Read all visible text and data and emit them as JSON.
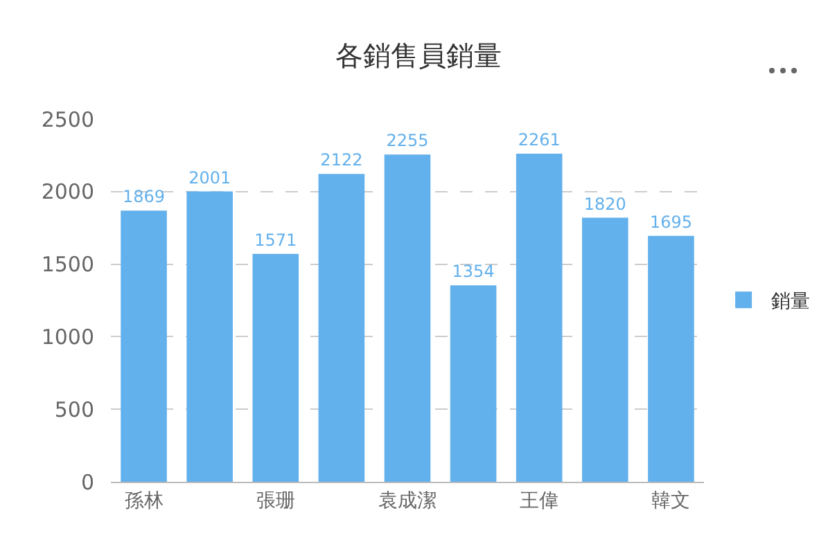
{
  "chart_data": {
    "type": "bar",
    "title": "各銷售員銷量",
    "categories": [
      "孫林",
      null,
      "張珊",
      null,
      "袁成潔",
      null,
      "王偉",
      null,
      "韓文"
    ],
    "series": [
      {
        "name": "銷量",
        "color": "#62b0ec",
        "values": [
          1869,
          2001,
          1571,
          2122,
          2255,
          1354,
          2261,
          1820,
          1695
        ]
      }
    ],
    "ylim": [
      0,
      2500
    ],
    "yticks": [
      0,
      500,
      1000,
      1500,
      2000,
      2500
    ],
    "grid": "y",
    "legend": "right",
    "data_labels": true
  }
}
